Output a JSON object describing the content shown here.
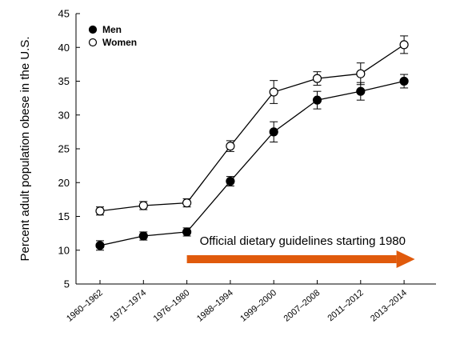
{
  "chart_data": {
    "type": "line",
    "categories": [
      "1960–1962",
      "1971–1974",
      "1976–1980",
      "1988–1994",
      "1999–2000",
      "2007–2008",
      "2011–2012",
      "2013–2014"
    ],
    "series": [
      {
        "name": "Men",
        "values": [
          10.7,
          12.1,
          12.7,
          20.2,
          27.5,
          32.2,
          33.5,
          35.0
        ],
        "error": [
          0.7,
          0.6,
          0.6,
          0.7,
          1.5,
          1.3,
          1.3,
          1.0
        ],
        "marker": "filled-circle",
        "color": "#000000"
      },
      {
        "name": "Women",
        "values": [
          15.8,
          16.6,
          17.0,
          25.4,
          33.4,
          35.4,
          36.1,
          40.4
        ],
        "error": [
          0.6,
          0.6,
          0.6,
          0.8,
          1.7,
          1.0,
          1.6,
          1.3
        ],
        "marker": "open-circle",
        "color": "#000000"
      }
    ],
    "xlabel": "",
    "ylabel": "Percent adult population obese in the U.S.",
    "ylim": [
      5,
      45
    ],
    "yticks": [
      5,
      10,
      15,
      20,
      25,
      30,
      35,
      40,
      45
    ],
    "grid": false,
    "legend": "top-left",
    "annotation": {
      "text": "Official dietary guidelines starting 1980",
      "arrow_from": "1976–1980",
      "arrow_color": "#E05A0C"
    }
  }
}
